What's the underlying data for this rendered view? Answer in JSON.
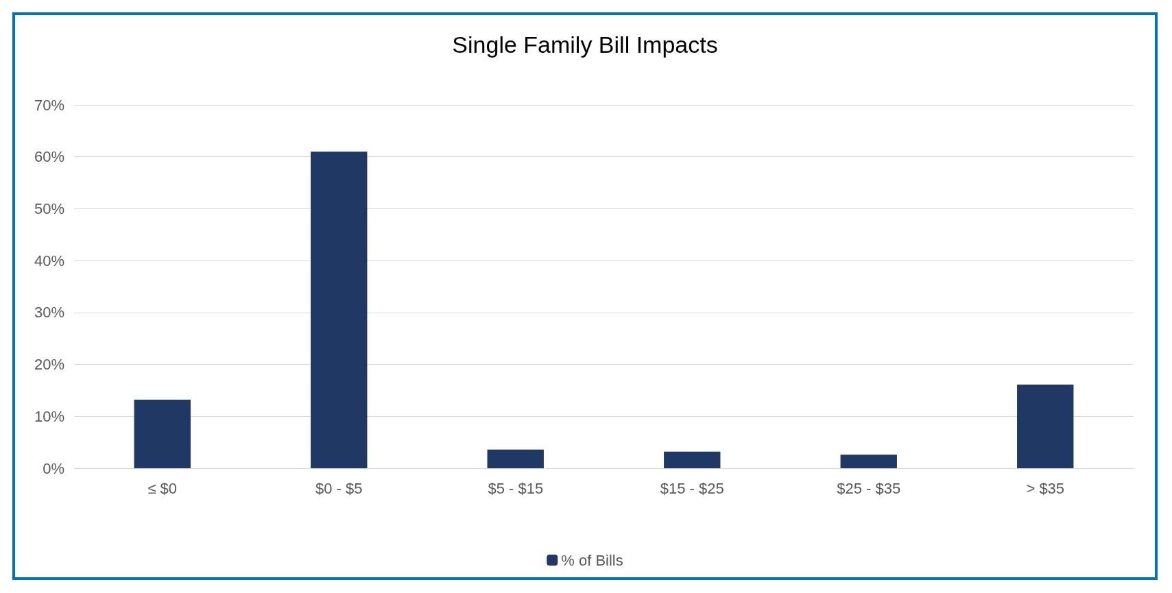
{
  "chart_data": {
    "type": "bar",
    "title": "Single Family Bill Impacts",
    "categories": [
      "≤ $0",
      "$0 - $5",
      "$5 - $15",
      "$15 - $25",
      "$25 - $35",
      "> $35"
    ],
    "series": [
      {
        "name": "% of Bills",
        "color": "#203864",
        "values": [
          13.2,
          61.0,
          3.6,
          3.2,
          2.6,
          16.1
        ]
      }
    ],
    "ylim": [
      0,
      70
    ],
    "yticks": [
      {
        "value": 0,
        "label": "0%"
      },
      {
        "value": 10,
        "label": "10%"
      },
      {
        "value": 20,
        "label": "20%"
      },
      {
        "value": 30,
        "label": "30%"
      },
      {
        "value": 40,
        "label": "40%"
      },
      {
        "value": 50,
        "label": "50%"
      },
      {
        "value": 60,
        "label": "60%"
      },
      {
        "value": 70,
        "label": "70%"
      }
    ],
    "grid": "y",
    "legend": "bottom"
  }
}
